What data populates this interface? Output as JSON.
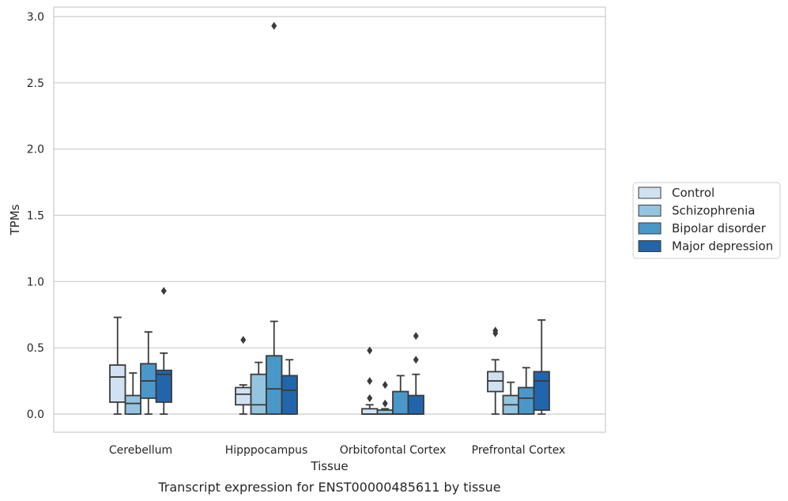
{
  "chart_data": {
    "type": "boxplot",
    "title": "",
    "caption": "Transcript expression for ENST00000485611 by tissue",
    "xlabel": "Tissue",
    "ylabel": "TPMs",
    "ylim": [
      -0.14,
      3.08
    ],
    "yticks": [
      0.0,
      0.5,
      1.0,
      1.5,
      2.0,
      2.5,
      3.0
    ],
    "ytick_labels": [
      "0.0",
      "0.5",
      "1.0",
      "1.5",
      "2.0",
      "2.5",
      "3.0"
    ],
    "categories": [
      "Cerebellum",
      "Hipppocampus",
      "Orbitofontal Cortex",
      "Prefrontal Cortex"
    ],
    "grid": "horizontal",
    "legend_position": "right",
    "series": [
      {
        "name": "Control",
        "color": "#d0e1f2",
        "boxes": [
          {
            "whisker_low": 0.0,
            "q1": 0.09,
            "median": 0.28,
            "q3": 0.37,
            "whisker_high": 0.73,
            "outliers": []
          },
          {
            "whisker_low": 0.0,
            "q1": 0.07,
            "median": 0.15,
            "q3": 0.2,
            "whisker_high": 0.22,
            "outliers": [
              0.56
            ]
          },
          {
            "whisker_low": 0.0,
            "q1": 0.0,
            "median": 0.0,
            "q3": 0.04,
            "whisker_high": 0.07,
            "outliers": [
              0.12,
              0.25,
              0.48
            ]
          },
          {
            "whisker_low": 0.0,
            "q1": 0.17,
            "median": 0.25,
            "q3": 0.32,
            "whisker_high": 0.41,
            "outliers": [
              0.61,
              0.63
            ]
          }
        ]
      },
      {
        "name": "Schizophrenia",
        "color": "#94c4df",
        "boxes": [
          {
            "whisker_low": 0.0,
            "q1": 0.0,
            "median": 0.08,
            "q3": 0.14,
            "whisker_high": 0.31,
            "outliers": []
          },
          {
            "whisker_low": 0.0,
            "q1": 0.0,
            "median": 0.07,
            "q3": 0.3,
            "whisker_high": 0.39,
            "outliers": []
          },
          {
            "whisker_low": 0.0,
            "q1": 0.0,
            "median": 0.0,
            "q3": 0.03,
            "whisker_high": 0.04,
            "outliers": [
              0.08,
              0.22
            ]
          },
          {
            "whisker_low": 0.0,
            "q1": 0.0,
            "median": 0.07,
            "q3": 0.14,
            "whisker_high": 0.24,
            "outliers": []
          }
        ]
      },
      {
        "name": "Bipolar disorder",
        "color": "#4a98c9",
        "boxes": [
          {
            "whisker_low": 0.0,
            "q1": 0.12,
            "median": 0.25,
            "q3": 0.38,
            "whisker_high": 0.62,
            "outliers": []
          },
          {
            "whisker_low": 0.0,
            "q1": 0.0,
            "median": 0.19,
            "q3": 0.44,
            "whisker_high": 0.7,
            "outliers": [
              2.93
            ]
          },
          {
            "whisker_low": 0.0,
            "q1": 0.0,
            "median": 0.0,
            "q3": 0.17,
            "whisker_high": 0.29,
            "outliers": []
          },
          {
            "whisker_low": 0.0,
            "q1": 0.0,
            "median": 0.12,
            "q3": 0.2,
            "whisker_high": 0.35,
            "outliers": []
          }
        ]
      },
      {
        "name": "Major depression",
        "color": "#2166ac",
        "boxes": [
          {
            "whisker_low": 0.0,
            "q1": 0.09,
            "median": 0.3,
            "q3": 0.33,
            "whisker_high": 0.46,
            "outliers": [
              0.93
            ]
          },
          {
            "whisker_low": 0.0,
            "q1": 0.0,
            "median": 0.18,
            "q3": 0.29,
            "whisker_high": 0.41,
            "outliers": []
          },
          {
            "whisker_low": 0.0,
            "q1": 0.0,
            "median": 0.0,
            "q3": 0.14,
            "whisker_high": 0.3,
            "outliers": [
              0.41,
              0.59
            ]
          },
          {
            "whisker_low": 0.0,
            "q1": 0.03,
            "median": 0.25,
            "q3": 0.32,
            "whisker_high": 0.71,
            "outliers": []
          }
        ]
      }
    ]
  }
}
